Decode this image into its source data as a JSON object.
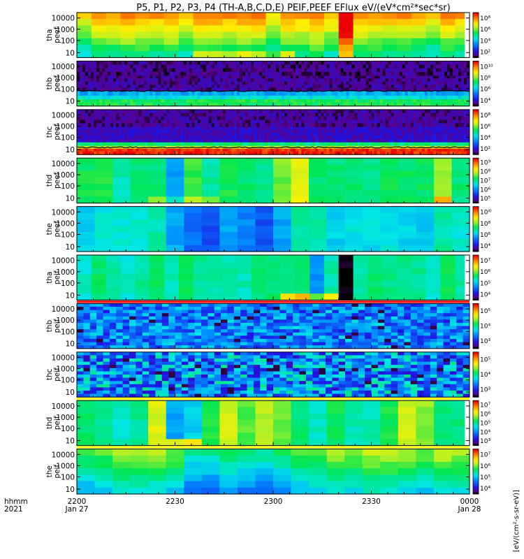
{
  "chart_data": {
    "type": "heatmap",
    "title": "P5, P1, P2, P3, P4 (TH-A,B,C,D,E) PEIF,PEEF EFlux eV/(eV*cm²*sec*sr)",
    "x_axis": {
      "row_labels": [
        "hhmm",
        "2021"
      ],
      "ticks": [
        {
          "t": 0,
          "label": "2200",
          "sub": "Jan 27"
        },
        {
          "t": 30,
          "label": "2230",
          "sub": ""
        },
        {
          "t": 60,
          "label": "2300",
          "sub": ""
        },
        {
          "t": 90,
          "label": "2330",
          "sub": ""
        },
        {
          "t": 120,
          "label": "0000",
          "sub": "Jan 28"
        }
      ],
      "range_minutes": [
        0,
        120
      ]
    },
    "y_ticks": [
      "10000",
      "1000",
      "100",
      "10"
    ],
    "colorbar_unit": "[eV/(cm²-s-sr-eV)]",
    "panels": [
      {
        "ylabel": [
          "tha",
          "peef"
        ],
        "cb_ticks": [
          "10⁸",
          "10⁶",
          "10⁴",
          "10²"
        ],
        "mode": "blocks",
        "cols": 27,
        "bands": 7,
        "base": 0.62,
        "band_grad": -0.06,
        "bumps": [
          [
            16,
            17,
            0.1
          ],
          [
            18,
            19,
            0.28
          ]
        ],
        "bottom_boost": [
          [
            8,
            15,
            0.18
          ]
        ],
        "blank_from": 118.5,
        "ymax_frac": 1.0
      },
      {
        "ylabel": [
          "thb",
          "peef"
        ],
        "cb_ticks": [
          "10¹⁰",
          "10⁸",
          "10⁶",
          "10⁴"
        ],
        "mode": "layers",
        "layers": [
          [
            0.0,
            0.16,
            0.55
          ],
          [
            0.16,
            0.24,
            0.42
          ],
          [
            0.24,
            0.34,
            0.34
          ],
          [
            0.34,
            0.68,
            0.06
          ],
          [
            0.68,
            1.0,
            0.05
          ]
        ],
        "noise": 0.05,
        "line_frac": 0.335,
        "ymax_frac": 1.0
      },
      {
        "ylabel": [
          "thc",
          "peef"
        ],
        "cb_ticks": [
          "10⁸",
          "10⁶",
          "10⁴",
          "10²"
        ],
        "mode": "layers",
        "layers": [
          [
            0.0,
            0.14,
            0.96
          ],
          [
            0.14,
            0.2,
            0.7
          ],
          [
            0.2,
            0.28,
            0.52
          ],
          [
            0.28,
            0.62,
            0.1
          ],
          [
            0.62,
            1.0,
            0.06
          ]
        ],
        "noise": 0.05,
        "line_frac": 0.16,
        "ymax_frac": 1.0
      },
      {
        "ylabel": [
          "thd",
          "peef"
        ],
        "cb_ticks": [
          "10⁹",
          "10⁸",
          "10⁷",
          "10⁶",
          "10⁵"
        ],
        "mode": "blocks",
        "cols": 22,
        "bands": 7,
        "base": 0.52,
        "band_grad": 0.0,
        "bumps": [
          [
            5,
            6,
            -0.18
          ],
          [
            11,
            13,
            0.16
          ],
          [
            20,
            21,
            0.1
          ]
        ],
        "bottom_boost": [
          [
            4,
            8,
            0.12
          ],
          [
            20,
            21,
            0.2
          ]
        ],
        "blank_from": 0,
        "ymax_frac": 1.0
      },
      {
        "ylabel": [
          "the",
          "peef"
        ],
        "cb_ticks": [
          "10ⁱ⁰",
          "10⁸",
          "10⁶",
          "10⁴"
        ],
        "mode": "blocks",
        "cols": 22,
        "bands": 7,
        "base": 0.42,
        "band_grad": 0.0,
        "bumps": [
          [
            5,
            12,
            -0.14
          ]
        ],
        "bottom_boost": [],
        "blank_from": 0,
        "ymax_frac": 1.0
      },
      {
        "ylabel": [
          "tha",
          "peif"
        ],
        "cb_ticks": [
          "10⁷",
          "10⁶",
          "10⁵",
          "10⁴"
        ],
        "mode": "blocks",
        "cols": 27,
        "bands": 7,
        "base": 0.5,
        "band_grad": 0.0,
        "bumps": [
          [
            16,
            17,
            -0.2
          ],
          [
            18,
            19,
            -0.52
          ]
        ],
        "bottom_boost": [
          [
            14,
            18,
            0.3
          ]
        ],
        "blank_from": 118.5,
        "ymax_frac": 1.0,
        "strip": "#ffffff"
      },
      {
        "ylabel": [
          "thb",
          "peif"
        ],
        "cb_ticks": [
          "10⁵",
          "10⁴",
          "10³"
        ],
        "mode": "noise",
        "cols": 60,
        "bands": 14,
        "base": 0.28,
        "spread": 0.14,
        "ymax_frac": 1.0,
        "strip": "#ff0000"
      },
      {
        "ylabel": [
          "thc",
          "peif"
        ],
        "cb_ticks": [
          "10⁵",
          "10⁴",
          "10³"
        ],
        "mode": "noise",
        "cols": 60,
        "bands": 14,
        "base": 0.3,
        "spread": 0.2,
        "ymax_frac": 1.0,
        "strip": "#ffffff"
      },
      {
        "ylabel": [
          "thd",
          "peif"
        ],
        "cb_ticks": [
          "10⁷",
          "10⁶",
          "10⁵",
          "10⁴",
          "10³"
        ],
        "mode": "blocks",
        "cols": 22,
        "bands": 7,
        "base": 0.5,
        "band_grad": 0.0,
        "bumps": [
          [
            4,
            5,
            0.2
          ],
          [
            5,
            7,
            -0.14
          ],
          [
            7,
            12,
            0.14
          ],
          [
            18,
            20,
            0.18
          ]
        ],
        "bottom_boost": [
          [
            5,
            7,
            0.4
          ]
        ],
        "blank_from": 118.5,
        "ymax_frac": 1.0,
        "strip": "#ffff00"
      },
      {
        "ylabel": [
          "the",
          "peif"
        ],
        "cb_ticks": [
          "10⁷",
          "10⁶",
          "10⁵",
          "10⁴"
        ],
        "mode": "blocks",
        "cols": 22,
        "bands": 7,
        "base": 0.5,
        "band_grad": -0.04,
        "bumps": [
          [
            6,
            12,
            -0.14
          ]
        ],
        "bottom_boost": [],
        "blank_from": 0,
        "ymax_frac": 1.0,
        "strip": "#ffff00"
      }
    ]
  }
}
